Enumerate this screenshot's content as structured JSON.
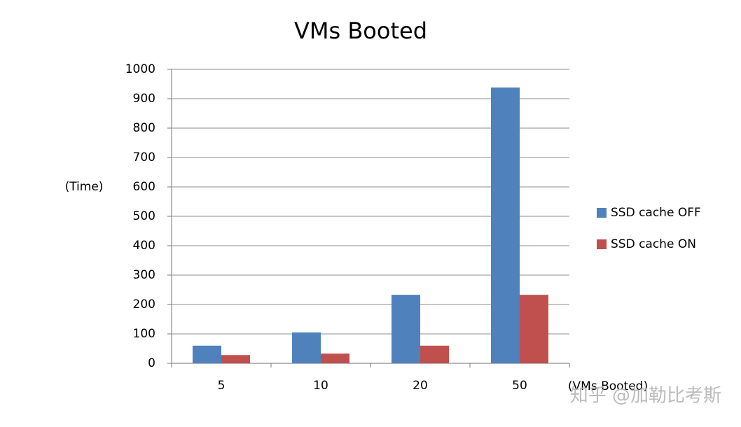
{
  "chart_data": {
    "type": "bar",
    "title": "VMs Booted",
    "y_label": "(Time)",
    "x_label": "(VMs Booted)",
    "categories": [
      "5",
      "10",
      "20",
      "50"
    ],
    "series": [
      {
        "name": "SSD cache OFF",
        "color": "#4f81bd",
        "values": [
          60,
          105,
          233,
          938
        ]
      },
      {
        "name": "SSD cache ON",
        "color": "#c0504d",
        "values": [
          28,
          33,
          60,
          233
        ]
      }
    ],
    "ylim": [
      0,
      1000
    ],
    "yticks": [
      0,
      100,
      200,
      300,
      400,
      500,
      600,
      700,
      800,
      900,
      1000
    ],
    "grid": true,
    "legend": "right"
  },
  "watermark": "知乎 @加勒比考斯"
}
